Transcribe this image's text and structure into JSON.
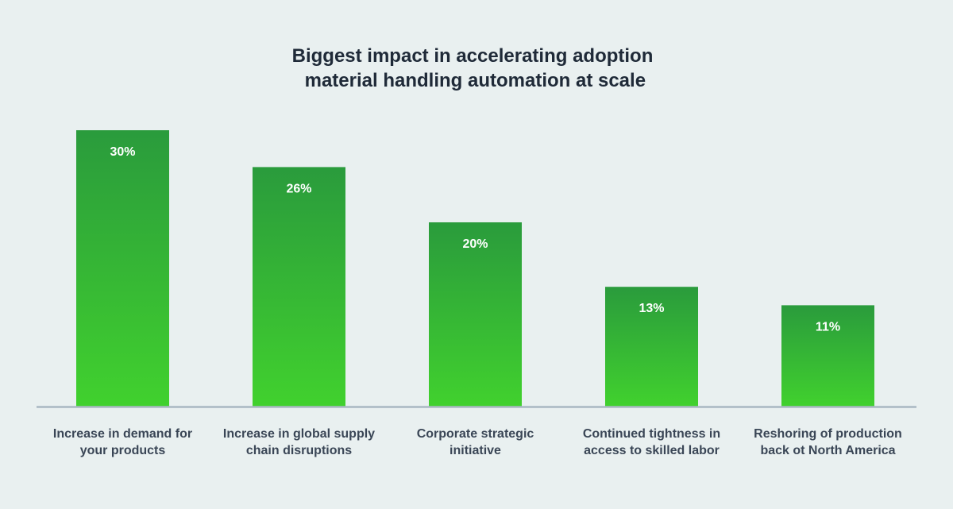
{
  "chart_data": {
    "type": "bar",
    "title": [
      "Biggest impact in accelerating adoption",
      " material handling automation at scale"
    ],
    "categories": [
      [
        "Increase in demand for",
        "your products"
      ],
      [
        "Increase in global supply",
        "chain disruptions"
      ],
      [
        "Corporate strategic",
        "initiative"
      ],
      [
        "Continued tightness in",
        "access to skilled labor"
      ],
      [
        "Reshoring of production",
        "back ot North America"
      ]
    ],
    "values": [
      30,
      26,
      20,
      13,
      11
    ],
    "data_labels": [
      "30%",
      "26%",
      "20%",
      "13%",
      "11%"
    ],
    "unit": "%",
    "ylim": [
      0,
      30
    ],
    "grid": false,
    "legend": "none",
    "colors": {
      "bar_top": "#2a9b3c",
      "bar_bottom": "#41d12e",
      "axis": "#a9b8c3",
      "label_text": "#3a4656",
      "title_text": "#1f2a38",
      "value_text": "#ffffff",
      "background": "#e9f0f0"
    }
  }
}
